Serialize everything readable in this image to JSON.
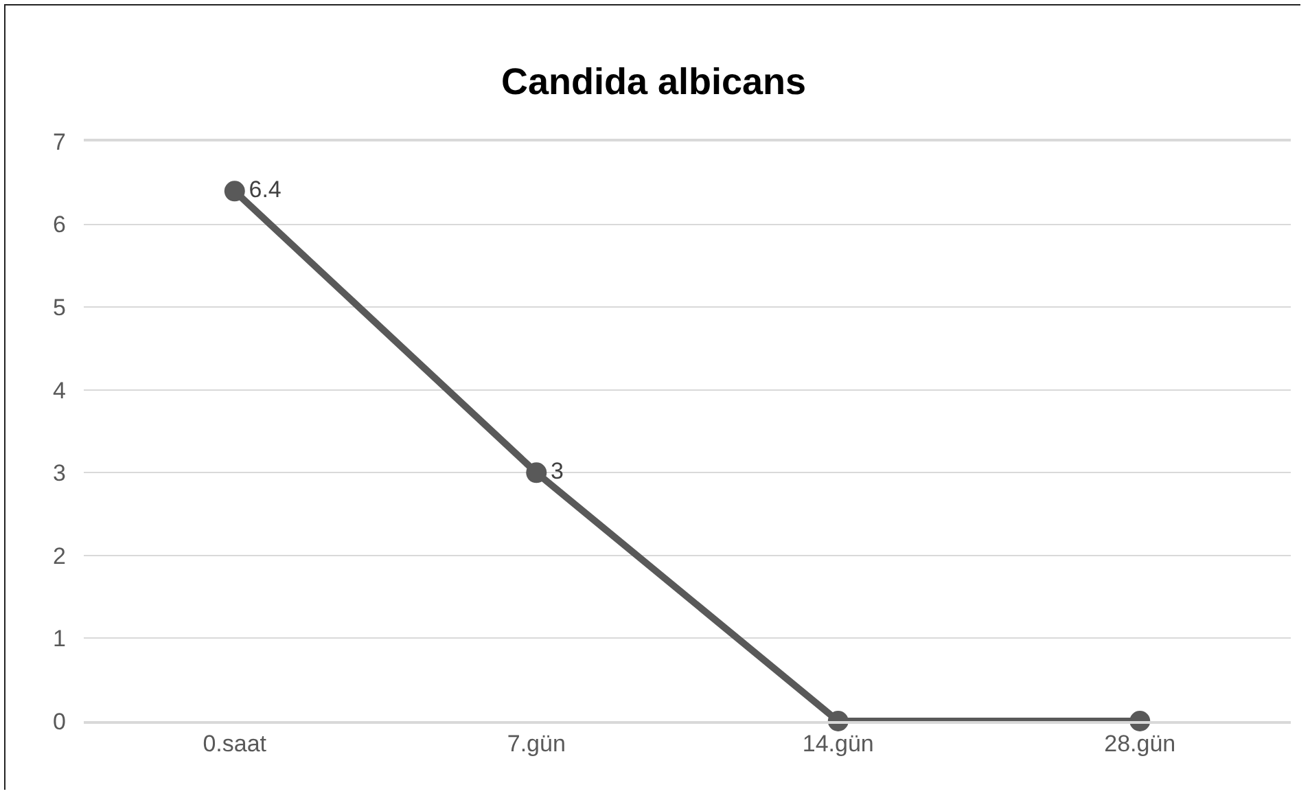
{
  "chart_data": {
    "type": "line",
    "title": "Candida albicans",
    "categories": [
      "0.saat",
      "7.gün",
      "14.gün",
      "28.gün"
    ],
    "series": [
      {
        "color": "#595959",
        "values": [
          6.4,
          3,
          0,
          0
        ],
        "value_labels": [
          "6.4",
          "3",
          null,
          null
        ]
      }
    ],
    "ylim": [
      0,
      7
    ],
    "yticks": [
      0,
      1,
      2,
      3,
      4,
      5,
      6,
      7
    ],
    "grid": "y",
    "marker": "circle",
    "line_style": "solid"
  }
}
